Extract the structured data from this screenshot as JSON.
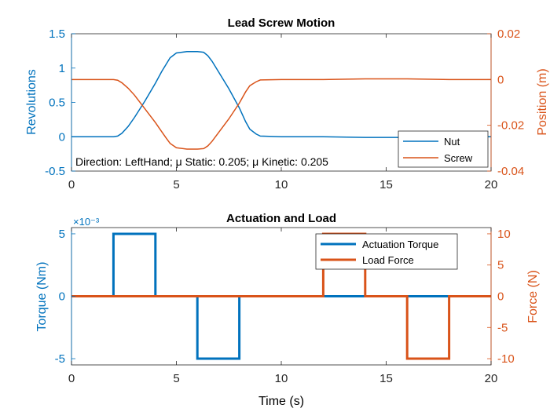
{
  "colors": {
    "left_axis": "#0072BD",
    "right_axis": "#D95319",
    "nut": "#0072BD",
    "screw": "#D95319",
    "torque": "#0072BD",
    "force": "#D95319",
    "axis_black": "#262626"
  },
  "chart_data": [
    {
      "type": "line",
      "title": "Lead Screw Motion",
      "xlabel": "",
      "xlim": [
        0,
        20
      ],
      "xticks": [
        0,
        5,
        10,
        15,
        20
      ],
      "xtick_labels": [
        "0",
        "5",
        "10",
        "15",
        "20"
      ],
      "ylabel_left": "Revolutions",
      "ylim_left": [
        -0.5,
        1.5
      ],
      "yticks_left": [
        -0.5,
        0,
        0.5,
        1,
        1.5
      ],
      "ytick_labels_left": [
        "-0.5",
        "0",
        "0.5",
        "1",
        "1.5"
      ],
      "ylabel_right": "Position (m)",
      "ylim_right": [
        -0.04,
        0.02
      ],
      "yticks_right": [
        -0.04,
        -0.02,
        0,
        0.02
      ],
      "ytick_labels_right": [
        "-0.04",
        "-0.02",
        "0",
        "0.02"
      ],
      "annotation": "Direction: LeftHand; μ Static: 0.205; μ Kinetic: 0.205",
      "legend": {
        "position": "bottom-right",
        "entries": [
          "Nut",
          "Screw"
        ]
      },
      "series": [
        {
          "name": "Nut",
          "axis": "left",
          "x": [
            0,
            2,
            2.2,
            2.4,
            2.7,
            3,
            3.5,
            4,
            4.3,
            4.5,
            4.7,
            5,
            5.5,
            6,
            6.3,
            6.5,
            6.7,
            7,
            7.5,
            8,
            8.3,
            8.5,
            8.8,
            9,
            10,
            12,
            14,
            16,
            18,
            20
          ],
          "y": [
            0,
            0,
            0.01,
            0.05,
            0.15,
            0.28,
            0.52,
            0.78,
            0.95,
            1.05,
            1.15,
            1.22,
            1.24,
            1.24,
            1.23,
            1.18,
            1.1,
            0.95,
            0.7,
            0.42,
            0.22,
            0.11,
            0.04,
            0.01,
            0,
            0,
            -0.01,
            -0.01,
            0,
            0
          ]
        },
        {
          "name": "Screw",
          "axis": "right",
          "x": [
            0,
            2,
            2.2,
            2.4,
            2.7,
            3,
            3.5,
            4,
            4.3,
            4.5,
            4.7,
            5,
            5.5,
            6,
            6.3,
            6.5,
            6.7,
            7,
            7.5,
            8,
            8.3,
            8.5,
            8.8,
            9,
            10,
            12,
            14,
            16,
            18,
            20
          ],
          "y": [
            0,
            0,
            -0.0003,
            -0.0014,
            -0.0038,
            -0.0068,
            -0.0128,
            -0.0188,
            -0.0228,
            -0.0254,
            -0.0279,
            -0.0298,
            -0.0304,
            -0.0304,
            -0.0302,
            -0.029,
            -0.027,
            -0.0233,
            -0.0172,
            -0.0103,
            -0.0054,
            -0.0027,
            -0.001,
            -0.0002,
            0,
            0,
            0.0003,
            0.0003,
            0,
            0
          ]
        }
      ]
    },
    {
      "type": "line",
      "title": "Actuation and Load",
      "xlabel": "Time (s)",
      "xlim": [
        0,
        20
      ],
      "xticks": [
        0,
        5,
        10,
        15,
        20
      ],
      "xtick_labels": [
        "0",
        "5",
        "10",
        "15",
        "20"
      ],
      "ylabel_left": "Torque (Nm)",
      "ylim_left": [
        -0.0055,
        0.0055
      ],
      "yticks_left": [
        -0.005,
        0,
        0.005
      ],
      "ytick_labels_left": [
        "-5",
        "0",
        "5"
      ],
      "y_exponent_label": "×10⁻³",
      "ylabel_right": "Force (N)",
      "ylim_right": [
        -11,
        11
      ],
      "yticks_right": [
        -10,
        -5,
        0,
        5,
        10
      ],
      "ytick_labels_right": [
        "-10",
        "-5",
        "0",
        "5",
        "10"
      ],
      "legend": {
        "position": "top-right",
        "entries": [
          "Actuation Torque",
          "Load Force"
        ]
      },
      "series": [
        {
          "name": "Actuation Torque",
          "axis": "left",
          "x": [
            0,
            2,
            2,
            4,
            4,
            6,
            6,
            8,
            8,
            20
          ],
          "y": [
            0,
            0,
            0.005,
            0.005,
            0,
            0,
            -0.005,
            -0.005,
            0,
            0
          ]
        },
        {
          "name": "Load Force",
          "axis": "right",
          "x": [
            0,
            12,
            12,
            14,
            14,
            16,
            16,
            18,
            18,
            20
          ],
          "y": [
            0,
            0,
            10,
            10,
            0,
            0,
            -10,
            -10,
            0,
            0
          ]
        }
      ]
    }
  ]
}
